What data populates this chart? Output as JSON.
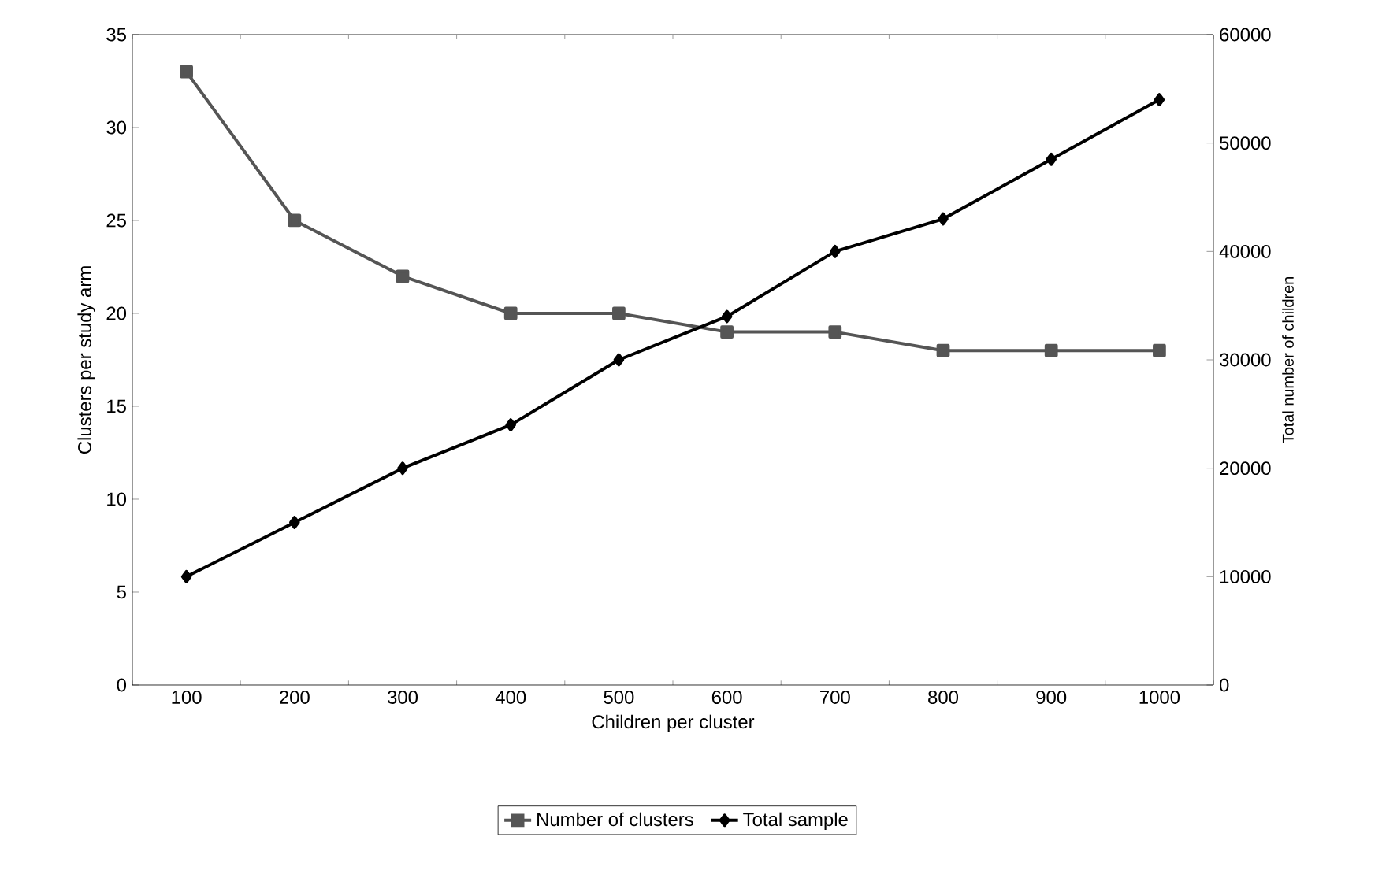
{
  "chart_data": {
    "type": "line",
    "xlabel": "Children per cluster",
    "ylabel": "Clusters per study arm",
    "y2label": "Total number of children",
    "categories": [
      "100",
      "200",
      "300",
      "400",
      "500",
      "600",
      "700",
      "800",
      "900",
      "1000"
    ],
    "series": [
      {
        "name": "Number of clusters",
        "color": "#555555",
        "marker": "square",
        "values": [
          33,
          25,
          22,
          20,
          20,
          19,
          19,
          18,
          18,
          18
        ]
      },
      {
        "name": "Total sample",
        "color": "#000000",
        "marker": "diamond",
        "axis": "y2",
        "values": [
          10000,
          15000,
          20000,
          24000,
          30000,
          34000,
          40000,
          43000,
          48500,
          54000
        ]
      }
    ],
    "ylim": [
      0,
      35
    ],
    "yticks": [
      0,
      5,
      10,
      15,
      20,
      25,
      30,
      35
    ],
    "y2lim": [
      0,
      60000
    ],
    "y2ticks": [
      0,
      10000,
      20000,
      30000,
      40000,
      50000,
      60000
    ],
    "grid": false,
    "legend": "bottom",
    "line_style": "solid"
  }
}
